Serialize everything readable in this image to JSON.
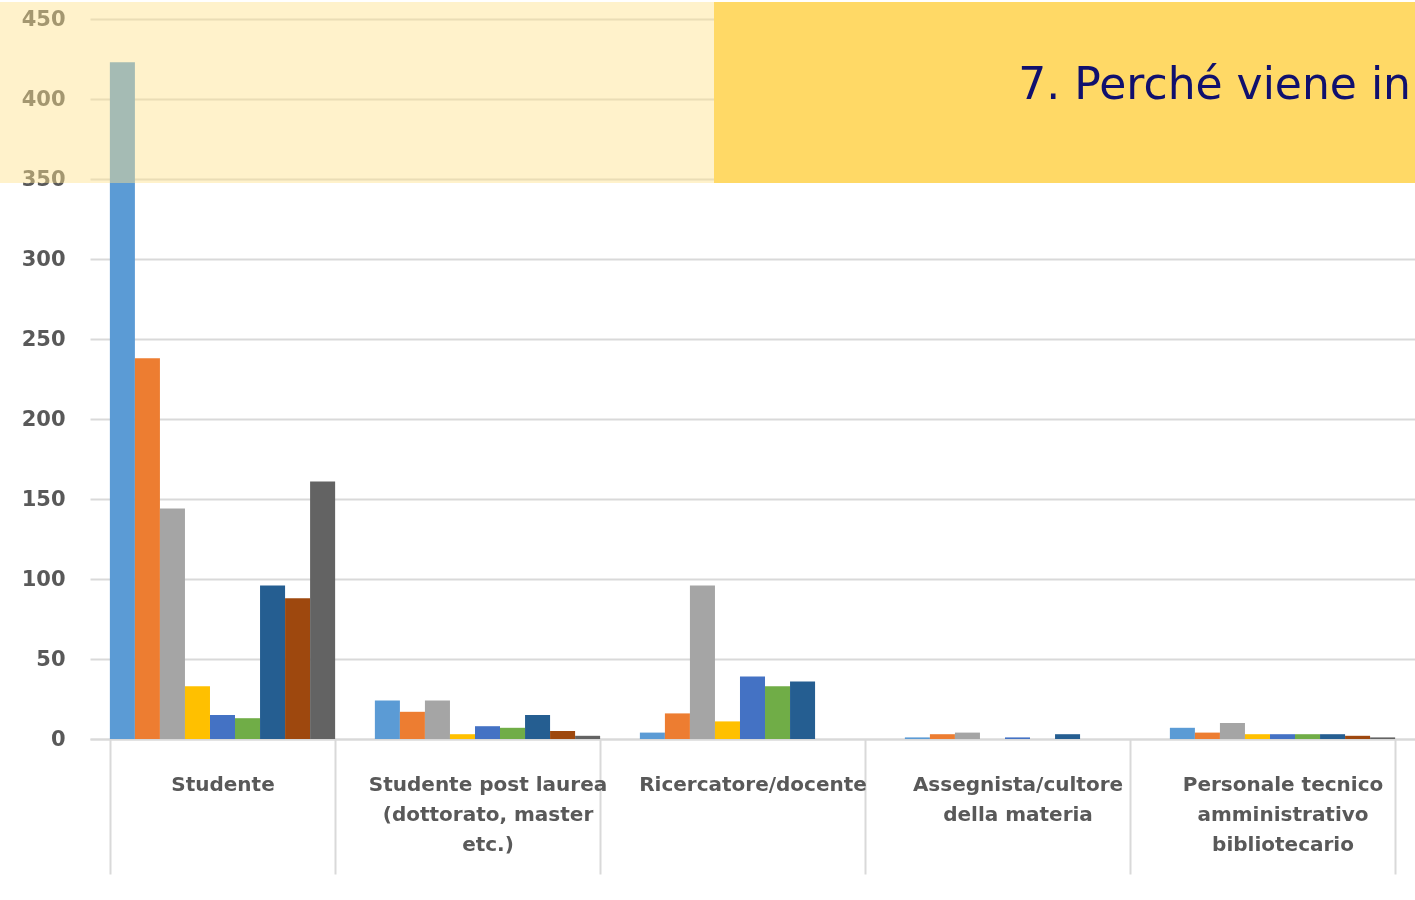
{
  "chart_data": {
    "type": "bar",
    "title": "7. Perché viene in",
    "categories": [
      "Studente",
      "Studente post laurea (dottorato, master etc.)",
      "Ricercatore/docente",
      "Assegnista/cultore della materia",
      "Personale tecnico amministrativo bibliotecario"
    ],
    "series": [
      {
        "color": "#5b9bd5",
        "values": [
          423,
          24,
          4,
          1,
          7
        ]
      },
      {
        "color": "#ed7d31",
        "values": [
          238,
          17,
          16,
          3,
          4
        ]
      },
      {
        "color": "#a5a5a5",
        "values": [
          144,
          24,
          96,
          4,
          10
        ]
      },
      {
        "color": "#ffc000",
        "values": [
          33,
          3,
          11,
          0,
          3
        ]
      },
      {
        "color": "#4472c4",
        "values": [
          15,
          8,
          39,
          1,
          3
        ]
      },
      {
        "color": "#70ad47",
        "values": [
          13,
          7,
          33,
          0,
          3
        ]
      },
      {
        "color": "#255e91",
        "values": [
          96,
          15,
          36,
          3,
          3
        ]
      },
      {
        "color": "#9e480e",
        "values": [
          88,
          5,
          0,
          0,
          2
        ]
      },
      {
        "color": "#636363",
        "values": [
          161,
          2,
          0,
          0,
          1
        ]
      }
    ],
    "ylim": [
      0,
      450
    ],
    "yticks": [
      0,
      50,
      100,
      150,
      200,
      250,
      300,
      350,
      400,
      450
    ],
    "grid": "y"
  }
}
